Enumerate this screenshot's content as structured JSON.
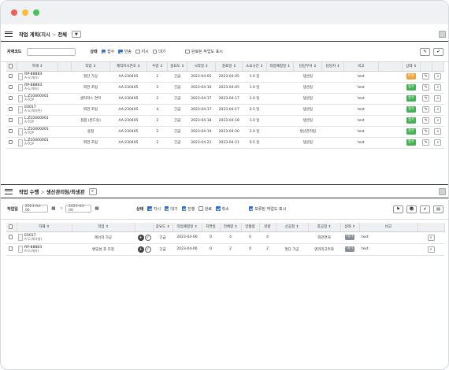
{
  "panel1": {
    "breadcrumb": [
      "작업 계획(지시",
      "전체"
    ],
    "filter": {
      "label": "자재코드",
      "input_value": "",
      "status_label": "상태",
      "status_options": [
        {
          "label": "접수",
          "checked": true
        },
        {
          "label": "반송",
          "checked": true
        },
        {
          "label": "지시",
          "checked": false
        },
        {
          "label": "대기",
          "checked": false
        }
      ],
      "show_completed": {
        "label": "완료된 작업도 표시",
        "checked": false
      }
    },
    "columns": [
      "",
      "자재 ⇕",
      "",
      "작업 ⇕",
      "제작지시번호 ⇕",
      "수량 ⇕",
      "중요도 ⇕",
      "시작일 ⇕",
      "종료일 ⇕",
      "소요시간 ⇕",
      "작업예정일 ⇕",
      "담당부서 ⇕",
      "담당자 ⇕",
      "비고",
      "",
      "상태 ⇕",
      "",
      ""
    ],
    "rows": [
      {
        "code": "RP-88883",
        "name": "A-도(체자)",
        "work": "절단 가공",
        "order": "AA-230405",
        "qty": "2",
        "prio": "긴급",
        "start": "2023-04-05",
        "end": "2023-04-05",
        "dur": "1.0 일",
        "plan": "",
        "dept": "생산팀",
        "mgr": "",
        "note": "test",
        "status": "반송",
        "status_color": "#f0a23b"
      },
      {
        "code": "RP-88883",
        "name": "A-도(체자)",
        "work": "외관 조립",
        "order": "AA-230405",
        "qty": "2",
        "prio": "긴급",
        "start": "2023-04-16",
        "end": "2023-04-05",
        "dur": "1.0 일",
        "plan": "",
        "dept": "생산팀",
        "mgr": "",
        "note": "test",
        "status": "접수",
        "status_color": "#45b254"
      },
      {
        "code": "L.Z10400001",
        "name": "A-TOP",
        "work": "센터라스 연마",
        "order": "AA-230405",
        "qty": "2",
        "prio": "긴급",
        "start": "2023-04-17",
        "end": "2023-04-17",
        "dur": "1.0 일",
        "plan": "",
        "dept": "생산팀",
        "mgr": "",
        "note": "test",
        "status": "접수",
        "status_color": "#45b254"
      },
      {
        "code": "E0017",
        "name": "A-도(체자면)",
        "work": "외관 조립",
        "order": "AA-230405",
        "qty": "4",
        "prio": "긴급",
        "start": "2023-04-17",
        "end": "2023-04-17",
        "dur": "0.5 일",
        "plan": "",
        "dept": "생산팀",
        "mgr": "",
        "note": "test",
        "status": "접수",
        "status_color": "#45b254"
      },
      {
        "code": "L.Z10400001",
        "name": "A-TOP",
        "work": "접합 (본드등)",
        "order": "AA-230405",
        "qty": "2",
        "prio": "긴급",
        "start": "2023-04-18",
        "end": "2023-04-18",
        "dur": "1.0 일",
        "plan": "",
        "dept": "생산팀",
        "mgr": "",
        "note": "test",
        "status": "접수",
        "status_color": "#45b254"
      },
      {
        "code": "L.Z10400001",
        "name": "A-TOP",
        "work": "용접",
        "order": "AA-230405",
        "qty": "2",
        "prio": "긴급",
        "start": "2023-04-19",
        "end": "2023-04-20",
        "dur": "2.0 일",
        "plan": "",
        "dept": "생산관리팀",
        "mgr": "",
        "note": "test",
        "status": "접수",
        "status_color": "#45b254"
      },
      {
        "code": "L.Z10400001",
        "name": "A-TOP",
        "work": "외관 조립",
        "order": "AA-230405",
        "qty": "2",
        "prio": "긴급",
        "start": "2023-04-21",
        "end": "2023-04-21",
        "dur": "0.5 일",
        "plan": "",
        "dept": "생산팀",
        "mgr": "",
        "note": "test",
        "status": "접수",
        "status_color": "#45b254"
      }
    ]
  },
  "panel2": {
    "breadcrumb": [
      "작업 수행",
      "생산관리팀/최생관"
    ],
    "filter": {
      "label": "작업일",
      "date_from": "2023-04-06",
      "date_sep": "~",
      "date_to": "2023-04-06",
      "status_label": "상태",
      "status_options": [
        {
          "label": "지시",
          "checked": true
        },
        {
          "label": "대기",
          "checked": true
        },
        {
          "label": "진행",
          "checked": true
        },
        {
          "label": "완료",
          "checked": false
        },
        {
          "label": "취소",
          "checked": true
        }
      ],
      "show_held": {
        "label": "보류된 작업도 표시",
        "checked": true
      }
    },
    "columns": [
      "",
      "자재 ⇕",
      "작업 ⇕",
      "",
      "중요도 ⇕",
      "작업예정일 ⇕",
      "지연일",
      "전체량 ⇕",
      "양품량",
      "잔량",
      "선공정 ⇕",
      "후공정 ⇕",
      "상태 ⇕",
      "비고",
      ""
    ],
    "rows": [
      {
        "code": "E0017",
        "name": "A-도(체자형)",
        "work": "레이저 가공",
        "prio": "긴급",
        "plan": "2023-04-06",
        "delay": "0",
        "total": "4",
        "good": "0",
        "remain": "4",
        "prev": "",
        "next": "외관면처",
        "status": "대기",
        "note": "test"
      },
      {
        "code": "RP-88883",
        "name": "A-도(체자)",
        "work": "벤딩성 후 조정",
        "prio": "긴급",
        "plan": "2023-04-06",
        "delay": "0",
        "total": "2",
        "good": "0",
        "remain": "2",
        "prev": "절단 가공",
        "next": "엔커리고주와",
        "status": "대기",
        "note": "test"
      }
    ]
  },
  "colors": {
    "accent": "#2f6fd0",
    "badge_green": "#45b254",
    "badge_orange": "#f0a23b",
    "badge_gray": "#8a8f95"
  }
}
